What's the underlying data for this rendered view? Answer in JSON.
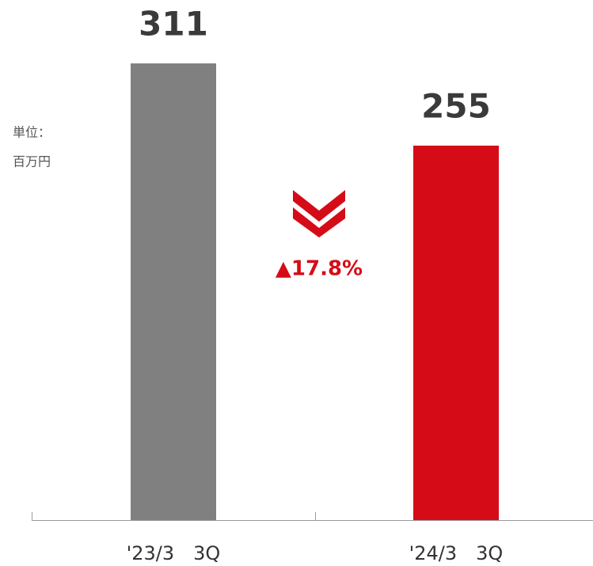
{
  "chart_data": {
    "type": "bar",
    "categories": [
      "'23/3　3Q",
      "'24/3　3Q"
    ],
    "values": [
      311,
      255
    ],
    "colors": [
      "#808080",
      "#d50c18"
    ],
    "unit_lines": [
      "単位：",
      "百万円"
    ],
    "annotation": "▲17.8%"
  }
}
